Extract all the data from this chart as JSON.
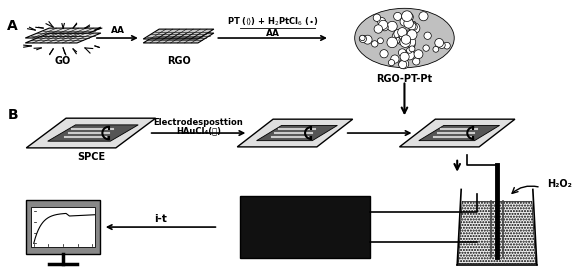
{
  "bg_color": "#ffffff",
  "label_A": "A",
  "label_B": "B",
  "label_GO": "GO",
  "label_RGO": "RGO",
  "label_RGO_PT_Pt": "RGO-PT-Pt",
  "label_SPCE": "SPCE",
  "label_AA": "AA",
  "label_AA2": "AA",
  "label_PT_line1": "PT (⟨⟩) + H₂PtCl₆ (●)",
  "label_electrodep": "Electrodesposttion",
  "label_HAuCl4": "HAuCl₄(⌣)",
  "label_H2O2": "H₂O₂",
  "label_it": "i-t"
}
